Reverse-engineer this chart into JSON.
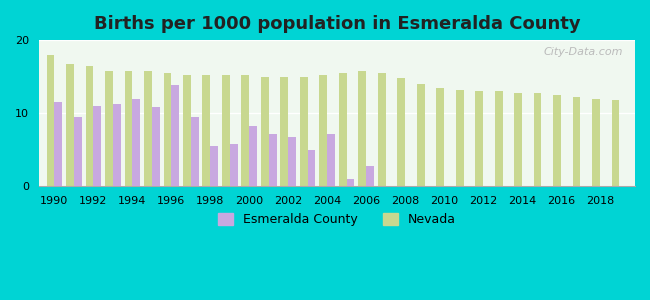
{
  "title": "Births per 1000 population in Esmeralda County",
  "background_color": "#00d4d4",
  "plot_bg_start": "#f0f8f0",
  "plot_bg_end": "#ffffff",
  "years": [
    1990,
    1991,
    1992,
    1993,
    1994,
    1995,
    1996,
    1997,
    1998,
    1999,
    2000,
    2001,
    2002,
    2003,
    2004,
    2005,
    2006,
    2007,
    2008,
    2009,
    2010,
    2011,
    2012,
    2013,
    2014,
    2015,
    2016,
    2017,
    2018,
    2019
  ],
  "esmeralda": [
    11.5,
    9.5,
    11.0,
    11.2,
    12.0,
    10.8,
    13.8,
    9.5,
    5.5,
    5.8,
    8.2,
    7.2,
    6.8,
    5.0,
    7.2,
    1.0,
    2.8,
    null,
    null,
    null,
    null,
    null,
    null,
    null,
    null,
    null,
    null,
    null,
    null,
    null
  ],
  "nevada": [
    18.0,
    16.8,
    16.5,
    15.8,
    15.8,
    15.8,
    15.5,
    15.2,
    15.2,
    15.2,
    15.2,
    15.0,
    15.0,
    15.0,
    15.2,
    15.5,
    15.8,
    15.5,
    14.8,
    14.0,
    13.5,
    13.2,
    13.0,
    13.0,
    12.8,
    12.8,
    12.5,
    12.2,
    12.0,
    11.8
  ],
  "esmeralda_color": "#c8a8e0",
  "nevada_color": "#c8d890",
  "ylim": [
    0,
    20
  ],
  "yticks": [
    0,
    10,
    20
  ],
  "bar_width": 0.4,
  "watermark": "City-Data.com"
}
